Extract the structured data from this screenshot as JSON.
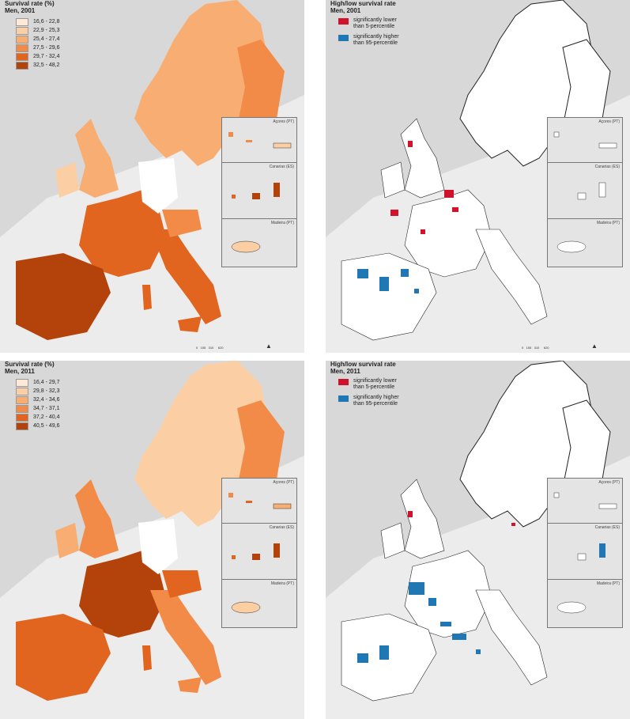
{
  "panels": [
    {
      "title": "Survival rate (%)",
      "subtitle": "Men, 2001",
      "legend": [
        {
          "label": "16,6 - 22,8",
          "color": "#fde9d6"
        },
        {
          "label": "22,9 - 25,3",
          "color": "#fbcfa3"
        },
        {
          "label": "25,4 - 27,4",
          "color": "#f8ae72"
        },
        {
          "label": "27,5 - 29,6",
          "color": "#f38b48"
        },
        {
          "label": "29,7 - 32,4",
          "color": "#e2651f"
        },
        {
          "label": "32,5 - 48,2",
          "color": "#b3430a"
        }
      ]
    },
    {
      "title": "High/low survival rate",
      "subtitle": "Men, 2001",
      "legend": [
        {
          "label": "significantly lower than 5-percentile",
          "color": "#d0122c"
        },
        {
          "label": "significantly higher than 95-percentile",
          "color": "#1f78b4"
        }
      ]
    },
    {
      "title": "Survival rate (%)",
      "subtitle": "Men, 2011",
      "legend": [
        {
          "label": "16,4 - 29,7",
          "color": "#fde9d6"
        },
        {
          "label": "29,8 - 32,3",
          "color": "#fbcfa3"
        },
        {
          "label": "32,4 - 34,6",
          "color": "#f8ae72"
        },
        {
          "label": "34,7 - 37,1",
          "color": "#f38b48"
        },
        {
          "label": "37,2 - 40,4",
          "color": "#e2651f"
        },
        {
          "label": "40,5 - 49,6",
          "color": "#b3430a"
        }
      ]
    },
    {
      "title": "High/low survival rate",
      "subtitle": "Men, 2011",
      "legend": [
        {
          "label": "significantly lower than 5-percentile",
          "color": "#d0122c"
        },
        {
          "label": "significantly higher than 95-percentile",
          "color": "#1f78b4"
        }
      ]
    }
  ],
  "insets": [
    "Açores (PT)",
    "Canarias (ES)",
    "Madeira (PT)"
  ],
  "scale_labels": [
    "0",
    "155",
    "310",
    "620"
  ]
}
